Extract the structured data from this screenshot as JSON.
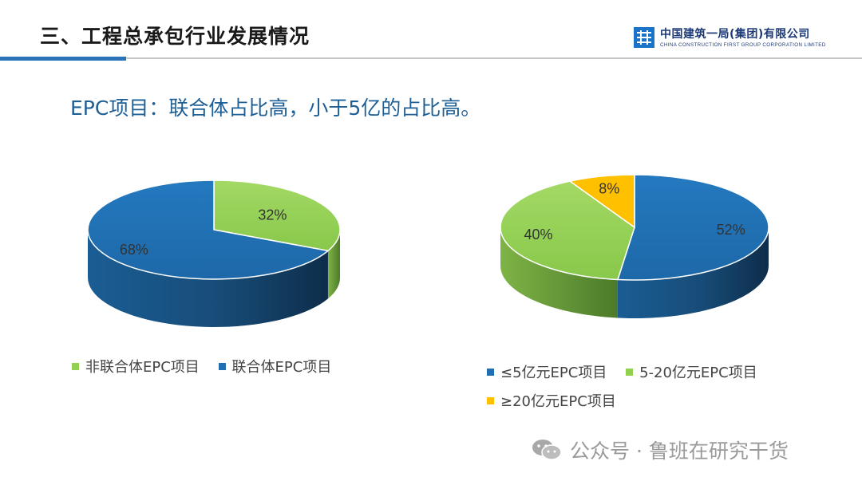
{
  "header": {
    "title": "三、工程总承包行业发展情况",
    "logo_cn": "中国建筑一局(集团)有限公司",
    "logo_en": "CHINA CONSTRUCTION FIRST GROUP CORPORATION LIMITED"
  },
  "subtitle": "EPC项目：联合体占比高，小于5亿的占比高。",
  "chart_data": [
    {
      "type": "pie",
      "slices": [
        {
          "label": "非联合体EPC项目",
          "value": 32,
          "display": "32%",
          "color": "#92d050"
        },
        {
          "label": "联合体EPC项目",
          "value": 68,
          "display": "68%",
          "color": "#1f6fb2"
        }
      ],
      "legend_position": "bottom"
    },
    {
      "type": "pie",
      "slices": [
        {
          "label": "≤5亿元EPC项目",
          "value": 52,
          "display": "52%",
          "color": "#1f6fb2"
        },
        {
          "label": "5-20亿元EPC项目",
          "value": 40,
          "display": "40%",
          "color": "#92d050"
        },
        {
          "label": "≥20亿元EPC项目",
          "value": 8,
          "display": "8%",
          "color": "#ffc000"
        }
      ],
      "legend_position": "bottom"
    }
  ],
  "watermark": "公众号 · 鲁班在研究干货"
}
